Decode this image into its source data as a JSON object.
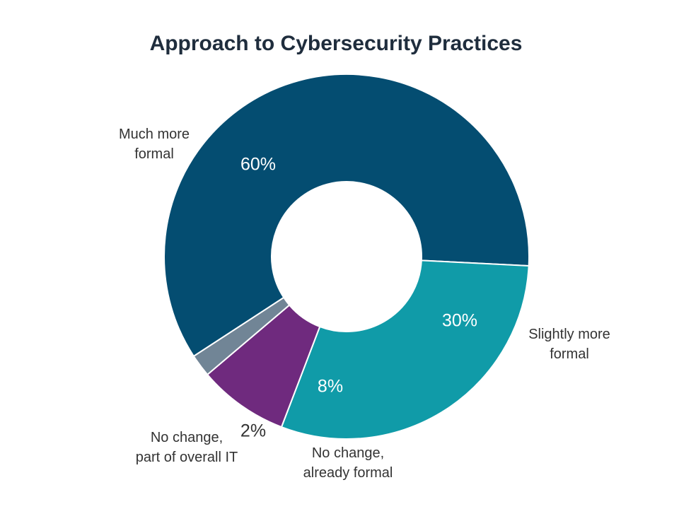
{
  "chart_data": {
    "type": "pie",
    "title": "Approach to Cybersecurity Practices",
    "categories": [
      "Much more formal",
      "Slightly more formal",
      "No change, already formal",
      "No change, part of overall IT"
    ],
    "values": [
      60,
      30,
      8,
      2
    ],
    "value_labels": [
      "60%",
      "30%",
      "8%",
      "2%"
    ],
    "category_label_lines": [
      [
        "Much more",
        "formal"
      ],
      [
        "Slightly more",
        "formal"
      ],
      [
        "No change,",
        "already formal"
      ],
      [
        "No change,",
        "part of overall IT"
      ]
    ],
    "colors": [
      "#044d71",
      "#109ba8",
      "#6f2a7e",
      "#718596"
    ],
    "donut": true,
    "legend": "none"
  }
}
